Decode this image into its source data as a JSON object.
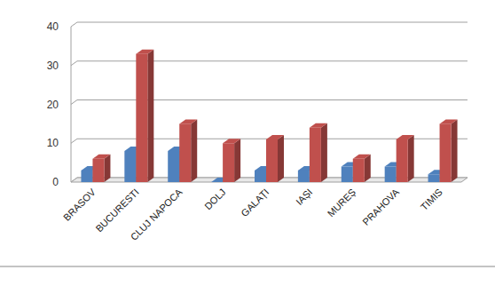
{
  "chart_data": {
    "type": "bar",
    "categories": [
      "BRASOV",
      "BUCURESTI",
      "CLUJ NAPOCA",
      "DOLJ",
      "GALAȚI",
      "IAȘI",
      "MUREȘ",
      "PRAHOVA",
      "TIMIS"
    ],
    "series": [
      {
        "color": "#4f81bd",
        "values": [
          3,
          8,
          8,
          0,
          3,
          3,
          4,
          4,
          2
        ]
      },
      {
        "color": "#c0504d",
        "values": [
          6,
          33,
          15,
          10,
          11,
          14,
          6,
          11,
          15
        ]
      }
    ],
    "ylim": [
      0,
      40
    ],
    "yticks": [
      0,
      10,
      20,
      30,
      40
    ],
    "grid": true
  }
}
